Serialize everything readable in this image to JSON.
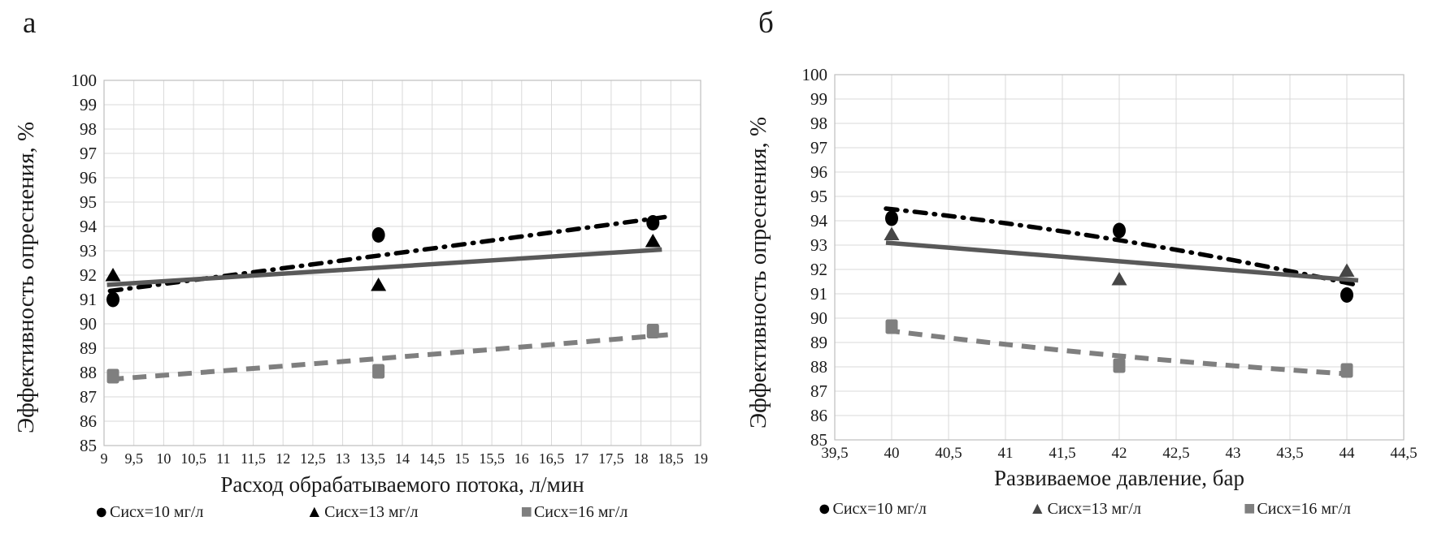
{
  "style": {
    "background": "#ffffff",
    "grid_color": "#d9d9d9",
    "axis_color": "#bfbfbf",
    "text_color": "#1a1a1a",
    "black": "#000000",
    "dark_gray": "#595959",
    "gray": "#7f7f7f"
  },
  "panels": [
    {
      "label": "а"
    },
    {
      "label": "б"
    }
  ],
  "chart_data": [
    {
      "type": "scatter",
      "title": "",
      "xlabel": "Расход обрабатываемого потока, л/мин",
      "ylabel": "Эффективность опреснения, %",
      "xlim": [
        9,
        19
      ],
      "ylim": [
        85,
        100
      ],
      "grid": true,
      "legend_position": "bottom",
      "x_ticks": [
        9,
        9.5,
        10,
        10.5,
        11,
        11.5,
        12,
        12.5,
        13,
        13.5,
        14,
        14.5,
        15,
        15.5,
        16,
        16.5,
        17,
        17.5,
        18,
        18.5,
        19
      ],
      "x_tick_labels": [
        "9",
        "9,5",
        "10",
        "10,5",
        "11",
        "11,5",
        "12",
        "12,5",
        "13",
        "13,5",
        "14",
        "14,5",
        "15",
        "15,5",
        "16",
        "16,5",
        "17",
        "17,5",
        "18",
        "18,5",
        "19"
      ],
      "y_ticks": [
        85,
        86,
        87,
        88,
        89,
        90,
        91,
        92,
        93,
        94,
        95,
        96,
        97,
        98,
        99,
        100
      ],
      "y_tick_labels": [
        "85",
        "86",
        "87",
        "88",
        "89",
        "90",
        "91",
        "92",
        "93",
        "94",
        "95",
        "96",
        "97",
        "98",
        "99",
        "100"
      ],
      "series": [
        {
          "name": "Сисх=10 мг/л",
          "marker": "circle",
          "color": "#000000",
          "points": [
            [
              9.15,
              91.0
            ],
            [
              13.6,
              93.65
            ],
            [
              18.2,
              94.15
            ]
          ],
          "trend": {
            "style": "dash-dot",
            "color": "#000000",
            "points": [
              [
                9.1,
                91.35
              ],
              [
                13.75,
                92.85
              ],
              [
                18.45,
                94.4
              ]
            ]
          }
        },
        {
          "name": "Сисх=13 мг/л",
          "marker": "triangle",
          "color": "#000000",
          "points": [
            [
              9.15,
              92.0
            ],
            [
              13.6,
              91.6
            ],
            [
              18.2,
              93.4
            ]
          ],
          "trend": {
            "style": "solid",
            "color": "#595959",
            "points": [
              [
                9.05,
                91.6
              ],
              [
                13.75,
                92.33
              ],
              [
                18.35,
                93.05
              ]
            ]
          }
        },
        {
          "name": "Сисх=16 мг/л",
          "marker": "square",
          "color": "#7f7f7f",
          "points": [
            [
              9.15,
              87.85
            ],
            [
              13.6,
              88.05
            ],
            [
              18.2,
              89.7
            ]
          ],
          "trend": {
            "style": "dashed",
            "color": "#7f7f7f",
            "points": [
              [
                9.1,
                87.72
              ],
              [
                13.75,
                88.6
              ],
              [
                18.45,
                89.55
              ]
            ]
          }
        }
      ]
    },
    {
      "type": "scatter",
      "title": "",
      "xlabel": "Развиваемое давление, бар",
      "ylabel": "Эффективность опреснения, %",
      "xlim": [
        39.5,
        44.5
      ],
      "ylim": [
        85,
        100
      ],
      "grid": true,
      "legend_position": "bottom",
      "x_ticks": [
        39.5,
        40,
        40.5,
        41,
        41.5,
        42,
        42.5,
        43,
        43.5,
        44,
        44.5
      ],
      "x_tick_labels": [
        "39,5",
        "40",
        "40,5",
        "41",
        "41,5",
        "42",
        "42,5",
        "43",
        "43,5",
        "44",
        "44,5"
      ],
      "y_ticks": [
        85,
        86,
        87,
        88,
        89,
        90,
        91,
        92,
        93,
        94,
        95,
        96,
        97,
        98,
        99,
        100
      ],
      "y_tick_labels": [
        "85",
        "86",
        "87",
        "88",
        "89",
        "90",
        "91",
        "92",
        "93",
        "94",
        "95",
        "96",
        "97",
        "98",
        "99",
        "100"
      ],
      "series": [
        {
          "name": "Сисх=10 мг/л",
          "marker": "circle",
          "color": "#000000",
          "points": [
            [
              40,
              94.1
            ],
            [
              42,
              93.6
            ],
            [
              44,
              90.95
            ]
          ],
          "trend": {
            "style": "dash-dot",
            "color": "#000000",
            "points": [
              [
                39.95,
                94.5
              ],
              [
                42,
                93.2
              ],
              [
                44.1,
                91.35
              ]
            ]
          }
        },
        {
          "name": "Сисх=13 мг/л",
          "marker": "triangle",
          "color": "#464646",
          "points": [
            [
              40,
              93.45
            ],
            [
              42,
              91.6
            ],
            [
              44,
              91.95
            ]
          ],
          "trend": {
            "style": "solid",
            "color": "#595959",
            "points": [
              [
                39.95,
                93.1
              ],
              [
                42,
                92.35
              ],
              [
                44.1,
                91.55
              ]
            ]
          }
        },
        {
          "name": "Сисх=16 мг/л",
          "marker": "square",
          "color": "#7f7f7f",
          "points": [
            [
              40,
              89.65
            ],
            [
              42,
              88.05
            ],
            [
              44,
              87.85
            ]
          ],
          "trend": {
            "style": "dashed",
            "color": "#7f7f7f",
            "points": [
              [
                39.95,
                89.5
              ],
              [
                42,
                88.45
              ],
              [
                44.05,
                87.7
              ]
            ]
          }
        }
      ]
    }
  ]
}
